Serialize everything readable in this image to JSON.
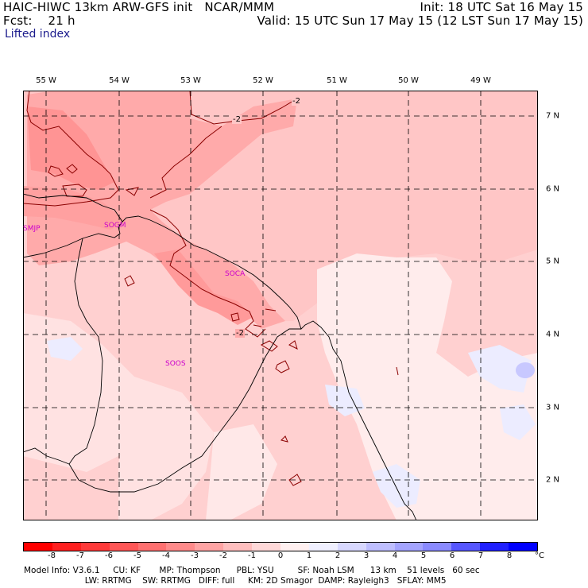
{
  "header": {
    "model": "HAIC-HIWC 13km ARW-GFS init",
    "center": "NCAR/MMM",
    "init": "Init: 18 UTC Sat 16 May 15",
    "fcst_label": "Fcst:",
    "fcst_value": "21 h",
    "valid": "Valid: 15 UTC Sun 17 May 15 (12 LST Sun 17 May 15)",
    "field": "Lifted index"
  },
  "map": {
    "lon_labels": [
      "55 W",
      "54 W",
      "53 W",
      "52 W",
      "51 W",
      "50 W",
      "49 W"
    ],
    "lat_labels": [
      "7 N",
      "6 N",
      "5 N",
      "4 N",
      "3 N",
      "2 N"
    ],
    "stations": [
      {
        "name": "SMJP"
      },
      {
        "name": "SOGM"
      },
      {
        "name": "SOCA"
      },
      {
        "name": "SOOS"
      }
    ],
    "contour_labels": [
      "-2",
      "-2",
      "-2",
      "-2"
    ],
    "station_color": "#cc00cc",
    "contour_color": "#8b0000"
  },
  "colorbar": {
    "ticks": [
      "-8",
      "-7",
      "-6",
      "-5",
      "-4",
      "-3",
      "-2",
      "-1",
      "0",
      "1",
      "2",
      "3",
      "4",
      "5",
      "6",
      "7",
      "8"
    ],
    "unit": "°C",
    "colors": [
      "#ff0000",
      "#ff2020",
      "#ff3a3a",
      "#ff5656",
      "#ff7070",
      "#ff8a8a",
      "#ffa4a4",
      "#ffbebe",
      "#ffd8d8",
      "#fff0f0",
      "#f0f0ff",
      "#d8d8ff",
      "#bebeff",
      "#a4a4ff",
      "#8a8aff",
      "#5656ff",
      "#2020ff",
      "#0000ff"
    ]
  },
  "footer": {
    "line1": "Model Info: V3.6.1     CU: KF       MP: Thompson      PBL: YSU         SF: Noah LSM      13 km    51 levels   60 sec",
    "line2": "                       LW: RRTMG    SW: RRTMG   DIFF: full     KM: 2D Smagor  DAMP: Rayleigh3   SFLAY: MM5"
  }
}
